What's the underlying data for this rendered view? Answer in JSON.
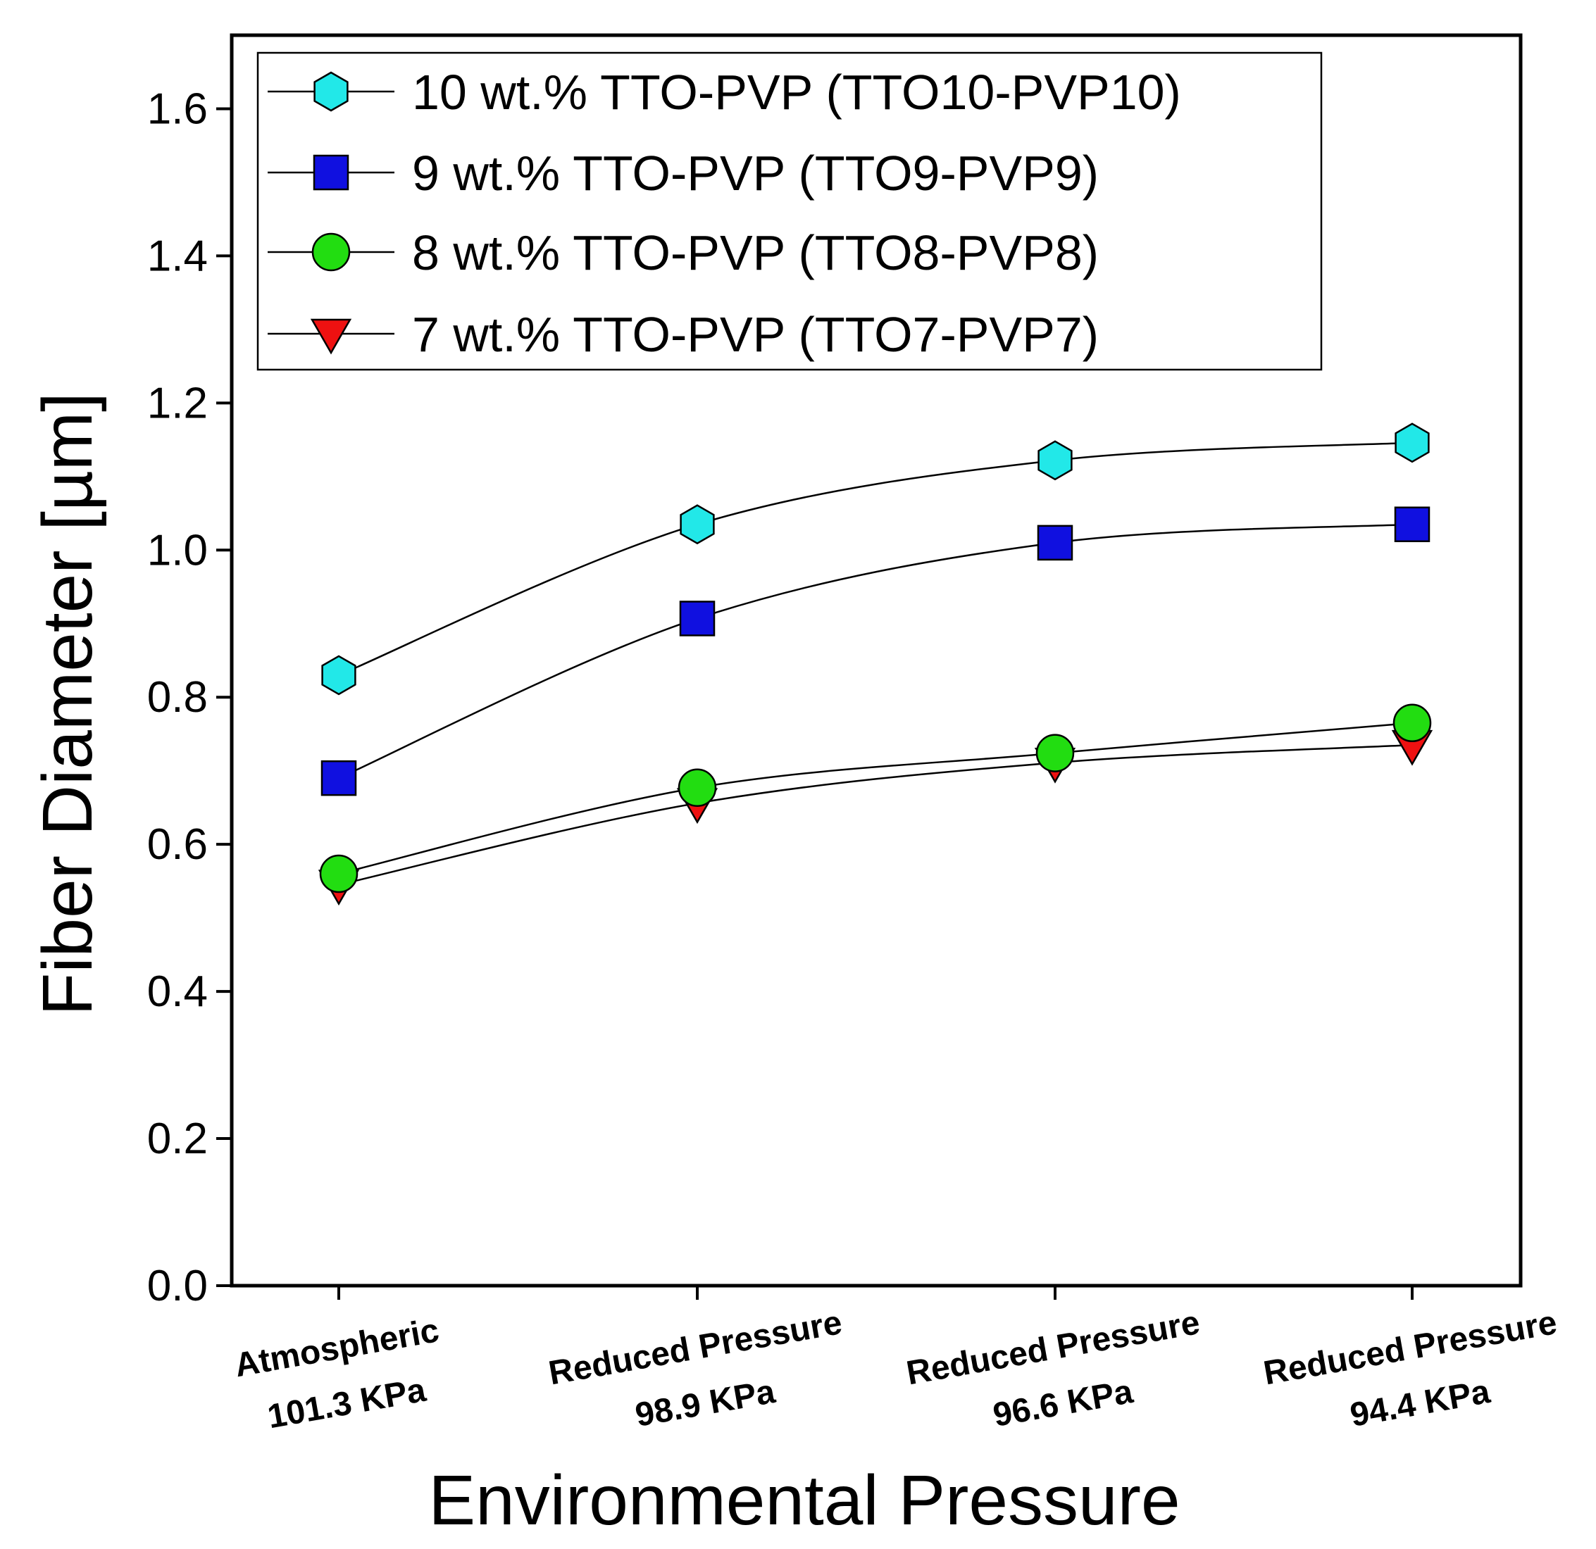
{
  "chart_data": {
    "type": "line",
    "title": "",
    "xlabel": "Environmental Pressure",
    "ylabel": "Fiber Diameter [µm]",
    "ylim": [
      0.0,
      1.7
    ],
    "yticks": [
      "0.0",
      "0.2",
      "0.4",
      "0.6",
      "0.8",
      "1.0",
      "1.2",
      "1.4",
      "1.6"
    ],
    "categories": [
      {
        "line1": "Atmospheric",
        "line2": "101.3 KPa"
      },
      {
        "line1": "Reduced Pressure",
        "line2": "98.9 KPa"
      },
      {
        "line1": "Reduced Pressure",
        "line2": "96.6 KPa"
      },
      {
        "line1": "Reduced Pressure",
        "line2": "94.4 KPa"
      }
    ],
    "legend_position": "top-left",
    "series": [
      {
        "name": "10 wt.% TTO-PVP (TTO10-PVP10)",
        "marker": "hexagon",
        "color": "#22e8e8",
        "values": [
          0.83,
          1.035,
          1.122,
          1.146
        ]
      },
      {
        "name": "9 wt.% TTO-PVP (TTO9-PVP9)",
        "marker": "square",
        "color": "#1010e0",
        "values": [
          0.69,
          0.907,
          1.01,
          1.035
        ]
      },
      {
        "name": "8 wt.% TTO-PVP (TTO8-PVP8)",
        "marker": "circle",
        "color": "#22dd11",
        "values": [
          0.56,
          0.677,
          0.724,
          0.765
        ]
      },
      {
        "name": "7 wt.% TTO-PVP (TTO7-PVP7)",
        "marker": "triangle-down",
        "color": "#ee1111",
        "values": [
          0.545,
          0.656,
          0.711,
          0.735
        ]
      }
    ]
  }
}
